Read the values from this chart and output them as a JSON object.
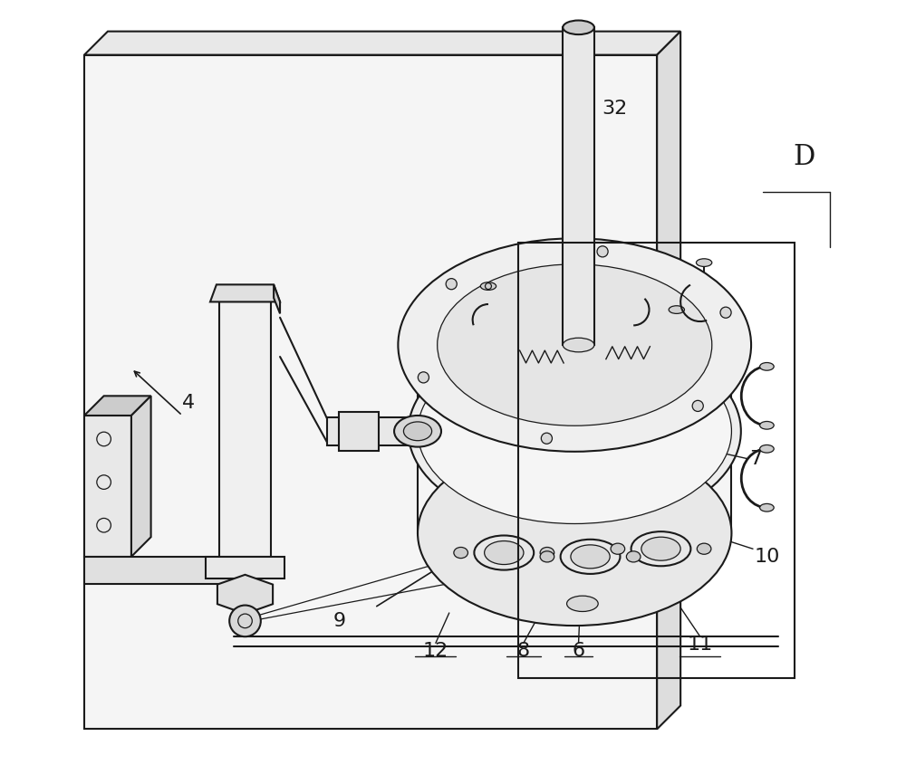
{
  "bg_color": "#ffffff",
  "line_color": "#1a1a1a",
  "label_color": "#1a1a1a",
  "figsize": [
    10.0,
    8.66
  ],
  "dpi": 100
}
